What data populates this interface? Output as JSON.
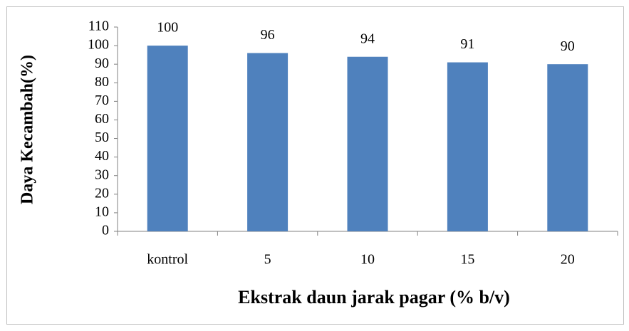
{
  "chart_data": {
    "type": "bar",
    "categories": [
      "kontrol",
      "5",
      "10",
      "15",
      "20"
    ],
    "values": [
      100,
      96,
      94,
      91,
      90
    ],
    "color": "#4f81bd",
    "ylim": [
      0,
      110
    ],
    "yticks": [
      0,
      10,
      20,
      30,
      40,
      50,
      60,
      70,
      80,
      90,
      100,
      110
    ],
    "grid": false,
    "y_label": "Daya Kecambah(%)",
    "x_label": "Ekstrak daun jarak pagar (% b/v)"
  }
}
